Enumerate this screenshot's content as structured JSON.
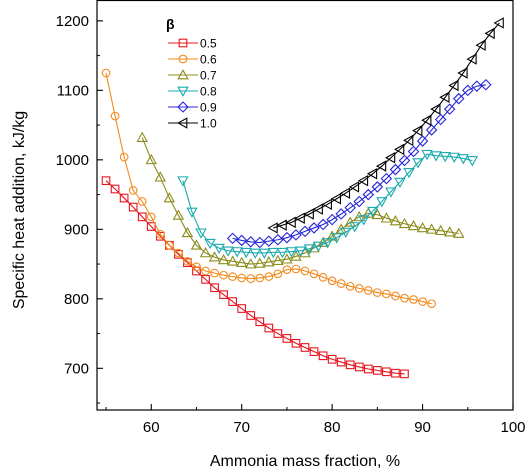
{
  "chart_data": {
    "type": "line",
    "xlabel": "Ammonia mass fraction, %",
    "ylabel": "Specific heat addition, kJ/kg",
    "xlim": [
      54,
      100
    ],
    "ylim": [
      640,
      1230
    ],
    "xticks": [
      60,
      70,
      80,
      90,
      100
    ],
    "yticks": [
      700,
      800,
      900,
      1000,
      1100,
      1200
    ],
    "grid": false,
    "legend": {
      "title": "β",
      "position": "top-left"
    },
    "series": [
      {
        "name": "0.5",
        "color": "#e8131d",
        "marker": "square",
        "x": [
          55,
          56,
          57,
          58,
          59,
          60,
          61,
          62,
          63,
          64,
          65,
          66,
          67,
          68,
          69,
          70,
          71,
          72,
          73,
          74,
          75,
          76,
          77,
          78,
          79,
          80,
          81,
          82,
          83,
          84,
          85,
          86,
          87,
          88
        ],
        "y": [
          970,
          958,
          945,
          932,
          918,
          904,
          890,
          877,
          864,
          852,
          840,
          828,
          816,
          806,
          796,
          786,
          776,
          767,
          758,
          750,
          743,
          736,
          730,
          724,
          718,
          713,
          709,
          705,
          702,
          699,
          697,
          695,
          693,
          692
        ]
      },
      {
        "name": "0.6",
        "color": "#f28a1e",
        "marker": "circle",
        "x": [
          55,
          56,
          57,
          58,
          59,
          60,
          61,
          62,
          63,
          64,
          65,
          66,
          67,
          68,
          69,
          70,
          71,
          72,
          73,
          74,
          75,
          76,
          77,
          78,
          79,
          80,
          81,
          82,
          83,
          84,
          85,
          86,
          87,
          88,
          89,
          90,
          91
        ],
        "y": [
          1125,
          1063,
          1004,
          956,
          940,
          918,
          893,
          877,
          866,
          854,
          846,
          840,
          837,
          834,
          832,
          830,
          829,
          830,
          832,
          836,
          842,
          843,
          840,
          836,
          831,
          826,
          822,
          818,
          815,
          812,
          809,
          807,
          804,
          801,
          799,
          796,
          793
        ]
      },
      {
        "name": "0.7",
        "color": "#8b8b1a",
        "marker": "triangle-up",
        "x": [
          59,
          60,
          61,
          62,
          63,
          64,
          65,
          66,
          67,
          68,
          69,
          70,
          71,
          72,
          73,
          74,
          75,
          76,
          77,
          78,
          79,
          80,
          81,
          82,
          83,
          84,
          85,
          86,
          87,
          88,
          89,
          90,
          91,
          92,
          93,
          94
        ],
        "y": [
          1032,
          1000,
          975,
          945,
          920,
          895,
          877,
          866,
          860,
          856,
          854,
          852,
          850,
          851,
          853,
          855,
          857,
          861,
          866,
          873,
          881,
          890,
          900,
          910,
          918,
          923,
          921,
          916,
          912,
          908,
          905,
          902,
          900,
          898,
          896,
          894
        ]
      },
      {
        "name": "0.8",
        "color": "#1aaab0",
        "marker": "triangle-down",
        "x": [
          63.5,
          64.5,
          65.5,
          66.5,
          67.5,
          68.5,
          69.5,
          70.5,
          71.5,
          72.5,
          73.5,
          74.5,
          75.5,
          76.5,
          77.5,
          78.5,
          79.5,
          80.5,
          81.5,
          82.5,
          83.5,
          84.5,
          85.5,
          86.5,
          87.5,
          88.5,
          89.5,
          90.5,
          91.5,
          92.5,
          93.5,
          94.5,
          95.5
        ],
        "y": [
          970,
          925,
          895,
          880,
          873,
          869,
          868,
          867,
          866,
          866,
          867,
          867,
          868,
          869,
          872,
          876,
          881,
          888,
          896,
          904,
          914,
          926,
          940,
          954,
          968,
          982,
          996,
          1008,
          1006,
          1005,
          1004,
          1002,
          999
        ]
      },
      {
        "name": "0.9",
        "color": "#2727d8",
        "marker": "diamond",
        "x": [
          69,
          70,
          71,
          72,
          73,
          74,
          75,
          76,
          77,
          78,
          79,
          80,
          81,
          82,
          83,
          84,
          85,
          86,
          87,
          88,
          89,
          90,
          91,
          92,
          93,
          94,
          95,
          96,
          97
        ],
        "y": [
          887,
          884,
          882,
          881,
          883,
          885,
          888,
          892,
          897,
          902,
          907,
          914,
          922,
          931,
          940,
          950,
          961,
          973,
          986,
          999,
          1012,
          1027,
          1043,
          1058,
          1073,
          1088,
          1100,
          1106,
          1108
        ]
      },
      {
        "name": "1.0",
        "color": "#000000",
        "marker": "triangle-left",
        "x": [
          73.5,
          74.5,
          75.5,
          76.5,
          77.5,
          78.5,
          79.5,
          80.5,
          81.5,
          82.5,
          83.5,
          84.5,
          85.5,
          86.5,
          87.5,
          88.5,
          89.5,
          90.5,
          91.5,
          92.5,
          93.5,
          94.5,
          95.5,
          96.5,
          97.5,
          98.5
        ],
        "y": [
          902,
          906,
          910,
          916,
          922,
          929,
          936,
          944,
          952,
          961,
          970,
          980,
          991,
          1003,
          1015,
          1028,
          1042,
          1057,
          1073,
          1090,
          1107,
          1125,
          1145,
          1165,
          1182,
          1197
        ]
      }
    ]
  }
}
